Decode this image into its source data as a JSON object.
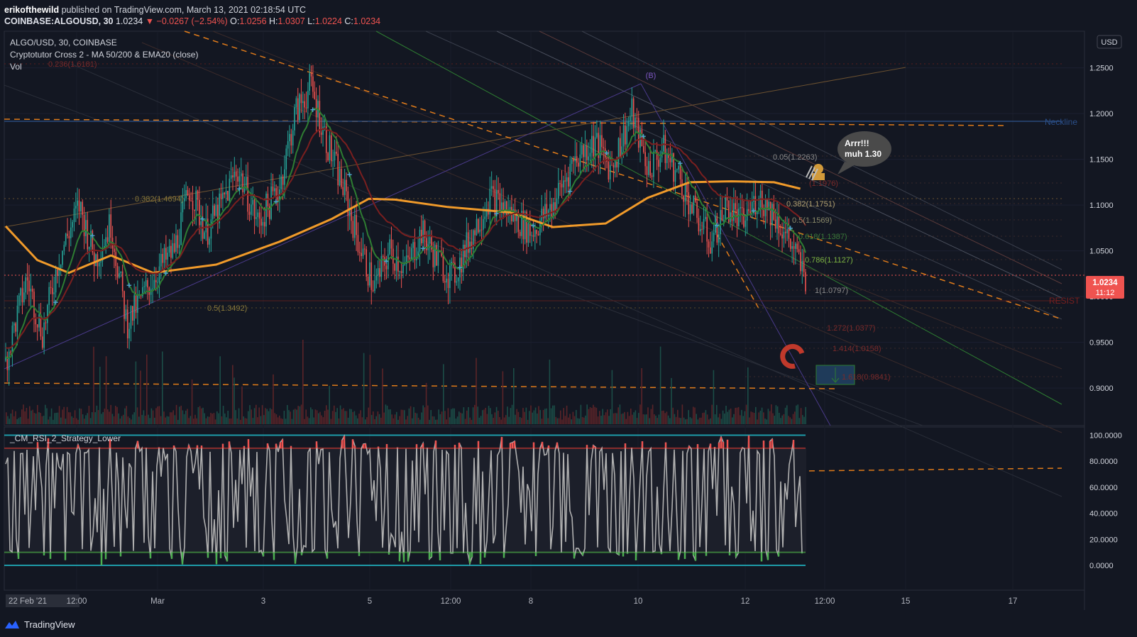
{
  "header": {
    "author": "erikofthewild",
    "published": "published on TradingView.com, March 13, 2021 02:18:54 UTC",
    "symbol": "COINBASE:ALGOUSD, 30",
    "last": "1.0234",
    "change": "▼ −0.0267 (−2.54%)",
    "o_label": "O:",
    "o": "1.0256",
    "h_label": "H:",
    "h": "1.0307",
    "l_label": "L:",
    "l": "1.0224",
    "c_label": "C:",
    "c": "1.0234"
  },
  "legend": {
    "symbol_line": "ALGO/USD, 30, COINBASE",
    "indicator": "Cryptotutor Cross 2 - MA 50/200 & EMA20 (close)",
    "volume": "Vol",
    "rsi_title": "_CM_RSI_2_Strategy_Lower"
  },
  "currency": "USD",
  "price_axis": [
    "1.2500",
    "1.2000",
    "1.1500",
    "1.1000",
    "1.0500",
    "1.0000",
    "0.9500",
    "0.9000"
  ],
  "rsi_axis": [
    "100.0000",
    "80.0000",
    "60.0000",
    "40.0000",
    "20.0000",
    "0.0000"
  ],
  "time_axis": [
    "22 Feb '21",
    "12:00",
    "Mar",
    "3",
    "5",
    "12:00",
    "8",
    "10",
    "12",
    "12:00",
    "15",
    "17"
  ],
  "last_price_tag": {
    "price": "1.0234",
    "countdown": "11:12"
  },
  "fib_left": [
    {
      "label": "0.236(1.6181)"
    },
    {
      "label": "0.382(1.4694)"
    },
    {
      "label": "0.5(1.3492)"
    }
  ],
  "fib_right": [
    {
      "label": "0.05(1.2263)"
    },
    {
      "label": "(1.1976)"
    },
    {
      "label": "0.382(1.1751)"
    },
    {
      "label": "0.5(1.1569)"
    },
    {
      "label": "0.618(1.1387)"
    },
    {
      "label": "0.786(1.1127)"
    },
    {
      "label": "1(1.0797)"
    },
    {
      "label": "1.272(1.0377)"
    },
    {
      "label": "1.414(1.0158)"
    },
    {
      "label": "1.618(0.9841)"
    }
  ],
  "annotations": {
    "wave_b": "(B)",
    "neckline": "Neckline",
    "resist": "RESIST",
    "bubble_line1": "Arrr!!!",
    "bubble_line2": "muh 1.30"
  },
  "footer": {
    "brand": "TradingView"
  },
  "colors": {
    "background": "#131722",
    "up": "#26a69a",
    "down": "#ef5350",
    "ma50": "#f09a2a",
    "ema20": "#2e7d32",
    "ma200": "#7a1f1f",
    "rsi": "#b0b0b0",
    "rsi_band": "#1e9ba8",
    "neckline": "#2962ff",
    "fib_dash": "#e07b1a"
  },
  "chart_data": {
    "type": "candlestick",
    "symbol": "ALGO/USD",
    "interval": "30",
    "exchange": "COINBASE",
    "x_range": [
      "22 Feb '21",
      "17"
    ],
    "ylim": [
      0.87,
      1.275
    ],
    "last_price": 1.0234,
    "close_path": [
      {
        "t": 0.0,
        "p": 0.93
      },
      {
        "t": 0.02,
        "p": 1.02
      },
      {
        "t": 0.035,
        "p": 0.96
      },
      {
        "t": 0.05,
        "p": 1.04
      },
      {
        "t": 0.07,
        "p": 1.1
      },
      {
        "t": 0.085,
        "p": 1.04
      },
      {
        "t": 0.1,
        "p": 1.08
      },
      {
        "t": 0.115,
        "p": 0.97
      },
      {
        "t": 0.13,
        "p": 1.0
      },
      {
        "t": 0.145,
        "p": 1.03
      },
      {
        "t": 0.16,
        "p": 1.05
      },
      {
        "t": 0.175,
        "p": 1.12
      },
      {
        "t": 0.19,
        "p": 1.07
      },
      {
        "t": 0.205,
        "p": 1.1
      },
      {
        "t": 0.22,
        "p": 1.14
      },
      {
        "t": 0.24,
        "p": 1.08
      },
      {
        "t": 0.26,
        "p": 1.12
      },
      {
        "t": 0.275,
        "p": 1.2
      },
      {
        "t": 0.29,
        "p": 1.23
      },
      {
        "t": 0.305,
        "p": 1.17
      },
      {
        "t": 0.32,
        "p": 1.12
      },
      {
        "t": 0.335,
        "p": 1.06
      },
      {
        "t": 0.35,
        "p": 1.01
      },
      {
        "t": 0.365,
        "p": 1.05
      },
      {
        "t": 0.38,
        "p": 1.03
      },
      {
        "t": 0.395,
        "p": 1.07
      },
      {
        "t": 0.41,
        "p": 1.04
      },
      {
        "t": 0.425,
        "p": 1.02
      },
      {
        "t": 0.44,
        "p": 1.06
      },
      {
        "t": 0.46,
        "p": 1.11
      },
      {
        "t": 0.48,
        "p": 1.09
      },
      {
        "t": 0.5,
        "p": 1.07
      },
      {
        "t": 0.52,
        "p": 1.1
      },
      {
        "t": 0.54,
        "p": 1.15
      },
      {
        "t": 0.56,
        "p": 1.17
      },
      {
        "t": 0.575,
        "p": 1.14
      },
      {
        "t": 0.595,
        "p": 1.2
      },
      {
        "t": 0.61,
        "p": 1.14
      },
      {
        "t": 0.625,
        "p": 1.16
      },
      {
        "t": 0.64,
        "p": 1.13
      },
      {
        "t": 0.655,
        "p": 1.09
      },
      {
        "t": 0.67,
        "p": 1.06
      },
      {
        "t": 0.685,
        "p": 1.1
      },
      {
        "t": 0.7,
        "p": 1.08
      },
      {
        "t": 0.715,
        "p": 1.11
      },
      {
        "t": 0.73,
        "p": 1.09
      },
      {
        "t": 0.745,
        "p": 1.06
      },
      {
        "t": 0.76,
        "p": 1.02
      }
    ],
    "ma50_path": [
      {
        "t": 0.0,
        "p": 1.077
      },
      {
        "t": 0.03,
        "p": 1.04
      },
      {
        "t": 0.06,
        "p": 1.026
      },
      {
        "t": 0.1,
        "p": 1.045
      },
      {
        "t": 0.14,
        "p": 1.026
      },
      {
        "t": 0.2,
        "p": 1.035
      },
      {
        "t": 0.26,
        "p": 1.06
      },
      {
        "t": 0.31,
        "p": 1.085
      },
      {
        "t": 0.345,
        "p": 1.107
      },
      {
        "t": 0.37,
        "p": 1.106
      },
      {
        "t": 0.42,
        "p": 1.098
      },
      {
        "t": 0.48,
        "p": 1.092
      },
      {
        "t": 0.52,
        "p": 1.076
      },
      {
        "t": 0.57,
        "p": 1.08
      },
      {
        "t": 0.61,
        "p": 1.108
      },
      {
        "t": 0.65,
        "p": 1.125
      },
      {
        "t": 0.69,
        "p": 1.126
      },
      {
        "t": 0.73,
        "p": 1.125
      },
      {
        "t": 0.755,
        "p": 1.118
      }
    ],
    "volume_axis": false,
    "rsi": {
      "name": "_CM_RSI_2_Strategy_Lower",
      "upper": 90,
      "lower": 10,
      "ylim": [
        0,
        100
      ]
    }
  }
}
